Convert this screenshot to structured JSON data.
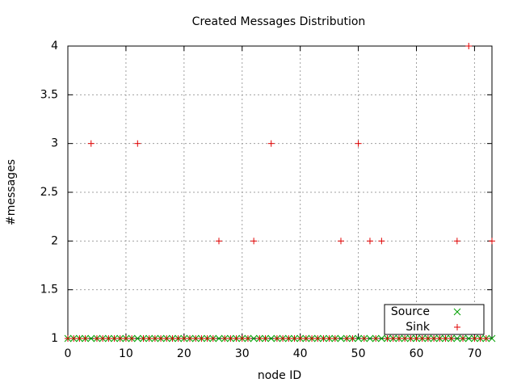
{
  "chart_data": {
    "type": "scatter",
    "title": "Created Messages Distribution",
    "x_label": "node ID",
    "y_label": "#messages",
    "xlim": [
      0,
      73
    ],
    "ylim": [
      1,
      4
    ],
    "xticks": [
      0,
      10,
      20,
      30,
      40,
      50,
      60,
      70
    ],
    "yticks": [
      1,
      1.5,
      2,
      2.5,
      3,
      3.5,
      4
    ],
    "grid": true,
    "legend": "bottom-right",
    "series": [
      {
        "name": "Source",
        "color": "#00a000",
        "marker": "x",
        "x": [
          0,
          1,
          2,
          3,
          4,
          5,
          6,
          7,
          8,
          9,
          10,
          11,
          12,
          13,
          14,
          15,
          16,
          17,
          18,
          19,
          20,
          21,
          22,
          23,
          24,
          25,
          26,
          27,
          28,
          29,
          30,
          31,
          32,
          33,
          34,
          35,
          36,
          37,
          38,
          39,
          40,
          41,
          42,
          43,
          44,
          45,
          46,
          47,
          48,
          49,
          50,
          51,
          52,
          53,
          54,
          55,
          56,
          57,
          58,
          59,
          60,
          61,
          62,
          63,
          64,
          65,
          66,
          67,
          68,
          69,
          70,
          71,
          72,
          73
        ],
        "values": [
          1,
          1,
          1,
          1,
          1,
          1,
          1,
          1,
          1,
          1,
          1,
          1,
          1,
          1,
          1,
          1,
          1,
          1,
          1,
          1,
          1,
          1,
          1,
          1,
          1,
          1,
          1,
          1,
          1,
          1,
          1,
          1,
          1,
          1,
          1,
          1,
          1,
          1,
          1,
          1,
          1,
          1,
          1,
          1,
          1,
          1,
          1,
          1,
          1,
          1,
          1,
          1,
          1,
          1,
          1,
          1,
          1,
          1,
          1,
          1,
          1,
          1,
          1,
          1,
          1,
          1,
          1,
          1,
          1,
          1,
          1,
          1,
          1,
          1
        ]
      },
      {
        "name": "Sink",
        "color": "#e00000",
        "marker": "+",
        "x": [
          0,
          1,
          2,
          3,
          4,
          5,
          6,
          7,
          8,
          9,
          10,
          11,
          12,
          13,
          14,
          15,
          16,
          17,
          18,
          19,
          20,
          21,
          22,
          23,
          24,
          25,
          26,
          27,
          28,
          29,
          30,
          31,
          32,
          33,
          34,
          35,
          36,
          37,
          38,
          39,
          40,
          41,
          42,
          43,
          44,
          45,
          46,
          47,
          48,
          49,
          50,
          51,
          52,
          53,
          54,
          55,
          56,
          57,
          58,
          59,
          60,
          61,
          62,
          63,
          64,
          65,
          66,
          67,
          68,
          69,
          70,
          71,
          72,
          73
        ],
        "values": [
          1,
          1,
          1,
          1,
          3,
          1,
          1,
          1,
          1,
          1,
          1,
          1,
          3,
          1,
          1,
          1,
          1,
          1,
          1,
          1,
          1,
          1,
          1,
          1,
          1,
          1,
          2,
          1,
          1,
          1,
          1,
          1,
          2,
          1,
          1,
          3,
          1,
          1,
          1,
          1,
          1,
          1,
          1,
          1,
          1,
          1,
          1,
          2,
          1,
          1,
          3,
          1,
          2,
          1,
          2,
          1,
          1,
          1,
          1,
          1,
          1,
          1,
          1,
          1,
          1,
          1,
          1,
          2,
          1,
          4,
          1,
          1,
          1,
          2
        ]
      }
    ]
  }
}
